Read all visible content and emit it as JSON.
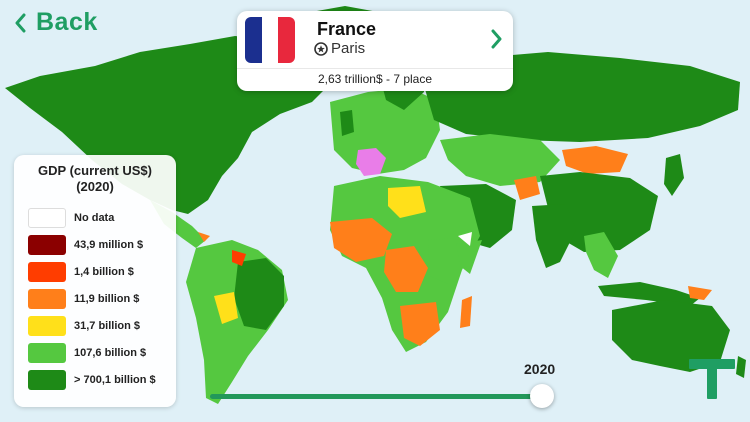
{
  "nav": {
    "back_label": "Back"
  },
  "country": {
    "name": "France",
    "capital": "Paris",
    "gdp_rank_text": "2,63 trillion$ - 7 place",
    "flag_colors": [
      "#1b2f8f",
      "#ffffff",
      "#e8283d"
    ]
  },
  "legend": {
    "title_line1": "GDP (current US$)",
    "title_line2": "(2020)",
    "items": [
      {
        "label": "No data",
        "color": "#ffffff"
      },
      {
        "label": "43,9 million $",
        "color": "#8b0000"
      },
      {
        "label": "1,4 billion $",
        "color": "#ff3d00"
      },
      {
        "label": "11,9 billion $",
        "color": "#ff7f1a"
      },
      {
        "label": "31,7 billion $",
        "color": "#ffe01a"
      },
      {
        "label": "107,6 billion $",
        "color": "#55c840"
      },
      {
        "label": "> 700,1 billion $",
        "color": "#1e8a17"
      }
    ]
  },
  "timeline": {
    "year": "2020",
    "progress": 1.0
  },
  "colors": {
    "accent": "#1f9e63",
    "ocean": "#dff0f7",
    "selected_country": "#e97de8"
  }
}
